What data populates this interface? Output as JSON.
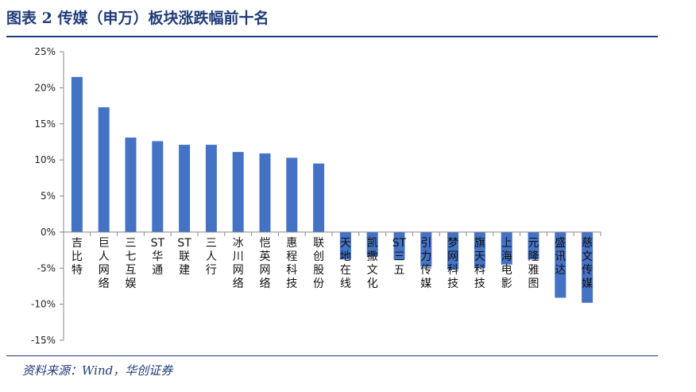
{
  "title": "图表 2   传媒（申万）板块涨跌幅前十名",
  "source": "资料来源：Wind，华创证券",
  "chart_data": {
    "type": "bar",
    "title": "图表 2   传媒（申万）板块涨跌幅前十名",
    "xlabel": "",
    "ylabel": "",
    "ylim": [
      -0.15,
      0.25
    ],
    "yticks": [
      "25%",
      "20%",
      "15%",
      "10%",
      "5%",
      "0%",
      "-5%",
      "-10%",
      "-15%"
    ],
    "ytick_values": [
      0.25,
      0.2,
      0.15,
      0.1,
      0.05,
      0,
      -0.05,
      -0.1,
      -0.15
    ],
    "grid": false,
    "bar_color": "#4472c4",
    "categories": [
      "吉比特",
      "巨人网络",
      "三七互娱",
      "ST华通",
      "ST联建",
      "三人行",
      "冰川网络",
      "恺英网络",
      "惠程科技",
      "联创股份",
      "天地在线",
      "凯撒文化",
      "ST三五",
      "引力传媒",
      "梦网科技",
      "旗天科技",
      "上海电影",
      "元隆雅图",
      "盛讯达",
      "慈文传媒"
    ],
    "values": [
      0.215,
      0.173,
      0.131,
      0.126,
      0.121,
      0.121,
      0.111,
      0.109,
      0.103,
      0.095,
      -0.038,
      -0.034,
      -0.038,
      -0.048,
      -0.052,
      -0.05,
      -0.045,
      -0.038,
      -0.091,
      -0.098
    ]
  }
}
